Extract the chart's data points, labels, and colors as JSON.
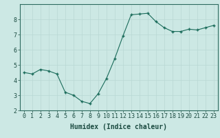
{
  "x": [
    0,
    1,
    2,
    3,
    4,
    5,
    6,
    7,
    8,
    9,
    10,
    11,
    12,
    13,
    14,
    15,
    16,
    17,
    18,
    19,
    20,
    21,
    22,
    23
  ],
  "y": [
    4.5,
    4.4,
    4.7,
    4.6,
    4.4,
    3.2,
    3.0,
    2.6,
    2.45,
    3.1,
    4.1,
    5.4,
    6.9,
    8.3,
    8.35,
    8.4,
    7.85,
    7.45,
    7.2,
    7.2,
    7.35,
    7.3,
    7.45,
    7.6
  ],
  "xlabel": "Humidex (Indice chaleur)",
  "ylim": [
    2,
    9
  ],
  "xlim": [
    -0.5,
    23.5
  ],
  "yticks": [
    2,
    3,
    4,
    5,
    6,
    7,
    8
  ],
  "xticks": [
    0,
    1,
    2,
    3,
    4,
    5,
    6,
    7,
    8,
    9,
    10,
    11,
    12,
    13,
    14,
    15,
    16,
    17,
    18,
    19,
    20,
    21,
    22,
    23
  ],
  "line_color": "#1a6b5a",
  "marker_color": "#1a6b5a",
  "bg_color": "#cce8e4",
  "grid_color": "#b8d8d4",
  "axis_color": "#2d6b60",
  "tick_label_color": "#1a4a40",
  "xlabel_color": "#1a4a40",
  "xlabel_fontsize": 7,
  "tick_fontsize": 6
}
